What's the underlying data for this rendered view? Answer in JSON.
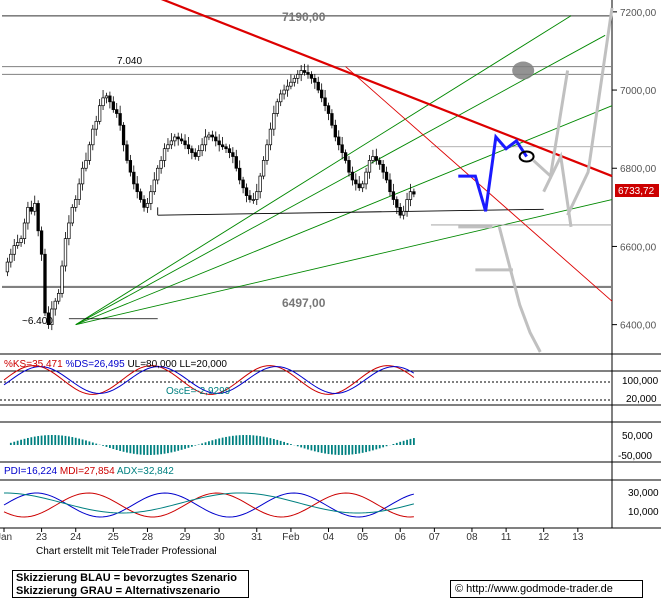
{
  "chart_data": {
    "type": "candlestick",
    "instrument_hint": "DAX",
    "price_ylim": [
      6330,
      7215
    ],
    "y_ticks": [
      "7200,00",
      "7000,00",
      "6800,00",
      "6600,00",
      "6400,00"
    ],
    "y_tick_values": [
      7200,
      7000,
      6800,
      6600,
      6400
    ],
    "x_ticks": [
      "Jan",
      "23",
      "24",
      "25",
      "28",
      "29",
      "30",
      "31",
      "Feb",
      "04",
      "05",
      "06",
      "07",
      "08",
      "11",
      "12",
      "13"
    ],
    "x_tick_index": [
      0,
      11,
      21,
      32,
      42,
      53,
      63,
      74,
      84,
      95,
      105,
      116,
      126,
      137,
      147,
      158,
      168
    ],
    "closes": [
      6535,
      6560,
      6580,
      6602,
      6610,
      6620,
      6660,
      6700,
      6690,
      6710,
      6640,
      6580,
      6430,
      6400,
      6440,
      6460,
      6480,
      6550,
      6620,
      6660,
      6700,
      6720,
      6760,
      6800,
      6820,
      6860,
      6900,
      6920,
      6960,
      6980,
      6985,
      6970,
      6950,
      6940,
      6910,
      6860,
      6820,
      6790,
      6760,
      6740,
      6720,
      6700,
      6710,
      6740,
      6770,
      6800,
      6820,
      6850,
      6860,
      6870,
      6880,
      6875,
      6870,
      6860,
      6850,
      6840,
      6830,
      6845,
      6860,
      6880,
      6885,
      6880,
      6870,
      6860,
      6855,
      6850,
      6840,
      6830,
      6800,
      6770,
      6750,
      6730,
      6720,
      6720,
      6740,
      6780,
      6820,
      6860,
      6900,
      6940,
      6970,
      6990,
      7000,
      7010,
      7020,
      7030,
      7040,
      7050,
      7045,
      7040,
      7030,
      7020,
      7000,
      6980,
      6960,
      6940,
      6910,
      6880,
      6860,
      6840,
      6820,
      6790,
      6770,
      6760,
      6750,
      6760,
      6790,
      6820,
      6830,
      6820,
      6810,
      6790,
      6770,
      6740,
      6720,
      6700,
      6680,
      6690,
      6720,
      6740,
      6734
    ],
    "annotations": {
      "high_label": "7190,00",
      "level_7040": "7.040",
      "low_label": "~6.400",
      "support_label": "6497,00",
      "last_price": "6733,72"
    },
    "levels": [
      7190,
      7060,
      7040,
      6497,
      6495
    ],
    "stoch_label": {
      "ks": "%KS=35,471",
      "ds": "%DS=26,495",
      "ul": "UL=80,000",
      "ll": "LL=20,000"
    },
    "stoch_ticks": [
      "100,000",
      "20,000"
    ],
    "osc_label": "OscE=-2,9299",
    "osc_ticks": [
      "50,000",
      "-50,000"
    ],
    "dmi_label": {
      "pdi": "PDI=16,224",
      "mdi": "MDI=27,854",
      "adx": "ADX=32,842"
    },
    "dmi_ticks": [
      "30,000",
      "10,000"
    ],
    "scenario_blue": [
      [
        133,
        6780
      ],
      [
        138,
        6780
      ],
      [
        141,
        6690
      ],
      [
        144,
        6880
      ],
      [
        147,
        6850
      ],
      [
        150,
        6870
      ],
      [
        153,
        6830
      ]
    ],
    "scenario_gray_1": [
      [
        155,
        6820
      ],
      [
        160,
        6780
      ],
      [
        165,
        7050
      ]
    ],
    "scenario_gray_2": [
      [
        145,
        6650
      ],
      [
        148,
        6550
      ],
      [
        151,
        6450
      ],
      [
        154,
        6380
      ],
      [
        157,
        6330
      ]
    ]
  },
  "footer": {
    "credit": "Chart erstellt mit TeleTrader Professional",
    "legend_blue": "Skizzierung BLAU = bevorzugtes Szenario",
    "legend_gray": "Skizzierung GRAU = Alternativszenario",
    "copyright_symbol": "©",
    "url": "http://www.godmode-trader.de"
  },
  "colors": {
    "candle": "#000000",
    "red_trend": "#dd0000",
    "green_fan": "#008800",
    "scenario_blue": "#1a1aff",
    "scenario_gray": "#c0c0c0",
    "last_price_bg": "#cc0000"
  }
}
